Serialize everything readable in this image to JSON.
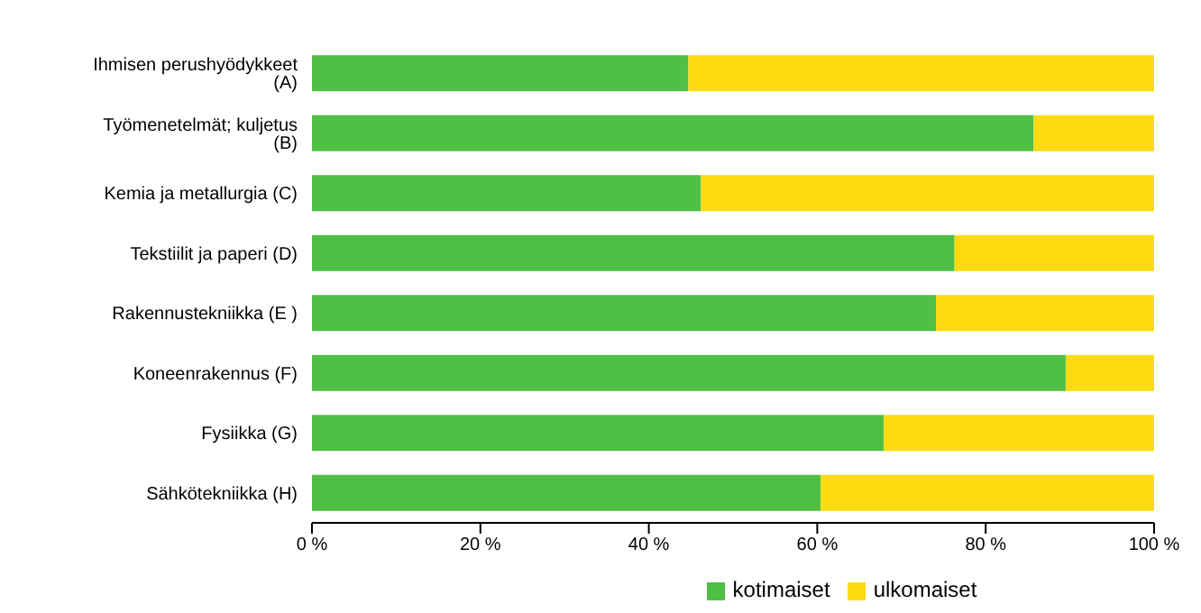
{
  "chart_data": {
    "type": "bar",
    "orientation": "horizontal",
    "stacked": true,
    "categories": [
      "Ihmisen perushyödykkeet (A)",
      "Työmenetelmät; kuljetus (B)",
      "Kemia ja metallurgia (C)",
      "Tekstiilit ja paperi (D)",
      "Rakennustekniikka (E )",
      "Koneenrakennus (F)",
      "Fysiikka (G)",
      "Sähkötekniikka (H)"
    ],
    "series": [
      {
        "name": "kotimaiset",
        "color": "#50bf45",
        "values": [
          44.7,
          85.7,
          46.2,
          76.3,
          74.1,
          89.5,
          67.9,
          60.4
        ]
      },
      {
        "name": "ulkomaiset",
        "color": "#fddb10",
        "values": [
          55.3,
          14.3,
          53.8,
          23.7,
          25.9,
          10.5,
          32.1,
          39.6
        ]
      }
    ],
    "xlim": [
      0,
      100
    ],
    "xticks": [
      {
        "value": 0,
        "label": "0 %"
      },
      {
        "value": 20,
        "label": "20 %"
      },
      {
        "value": 40,
        "label": "40 %"
      },
      {
        "value": 60,
        "label": "60 %"
      },
      {
        "value": 80,
        "label": "80 %"
      },
      {
        "value": 100,
        "label": "100 %"
      }
    ],
    "grid": false,
    "legend": "bottom"
  }
}
